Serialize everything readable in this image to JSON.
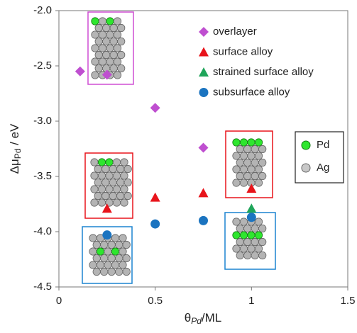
{
  "chart_data": {
    "type": "scatter",
    "xlabel_main": "θ",
    "xlabel_sub": "Pd",
    "xlabel_unit": "/ML",
    "ylabel_main": "Δμ",
    "ylabel_sub": "Pd",
    "ylabel_unit": " / eV",
    "xlim": [
      0,
      1.5
    ],
    "xticks": [
      0,
      0.5,
      1,
      1.5
    ],
    "ylim": [
      -4.5,
      -2.0
    ],
    "yticks": [
      {
        "value": -2.0,
        "label": "-2.0"
      },
      -2.5,
      {
        "value": -3.0,
        "label": "-3.0"
      },
      -3.5,
      {
        "value": -4.0,
        "label": "-4.0"
      },
      -4.5
    ],
    "series": [
      {
        "name": "overlayer",
        "color": "#bf4fd0",
        "marker": "diamond",
        "x": [
          0.11,
          0.25,
          0.5,
          0.75
        ],
        "values": [
          -2.55,
          -2.58,
          -2.88,
          -3.24
        ]
      },
      {
        "name": "surface alloy",
        "color": "#e8141b",
        "marker": "triangle",
        "x": [
          0.25,
          0.5,
          0.75,
          1.0
        ],
        "values": [
          -3.79,
          -3.69,
          -3.65,
          -3.61
        ]
      },
      {
        "name": "strained surface alloy",
        "color": "#1fa55a",
        "marker": "triangle",
        "x": [
          1.0
        ],
        "values": [
          -3.79
        ]
      },
      {
        "name": "subsurface alloy",
        "color": "#1b74c0",
        "marker": "circle",
        "x": [
          0.25,
          0.5,
          0.75,
          1.0
        ],
        "values": [
          -4.03,
          -3.93,
          -3.9,
          -3.87
        ]
      }
    ],
    "inset_legend": [
      "Pd",
      "Ag"
    ]
  }
}
